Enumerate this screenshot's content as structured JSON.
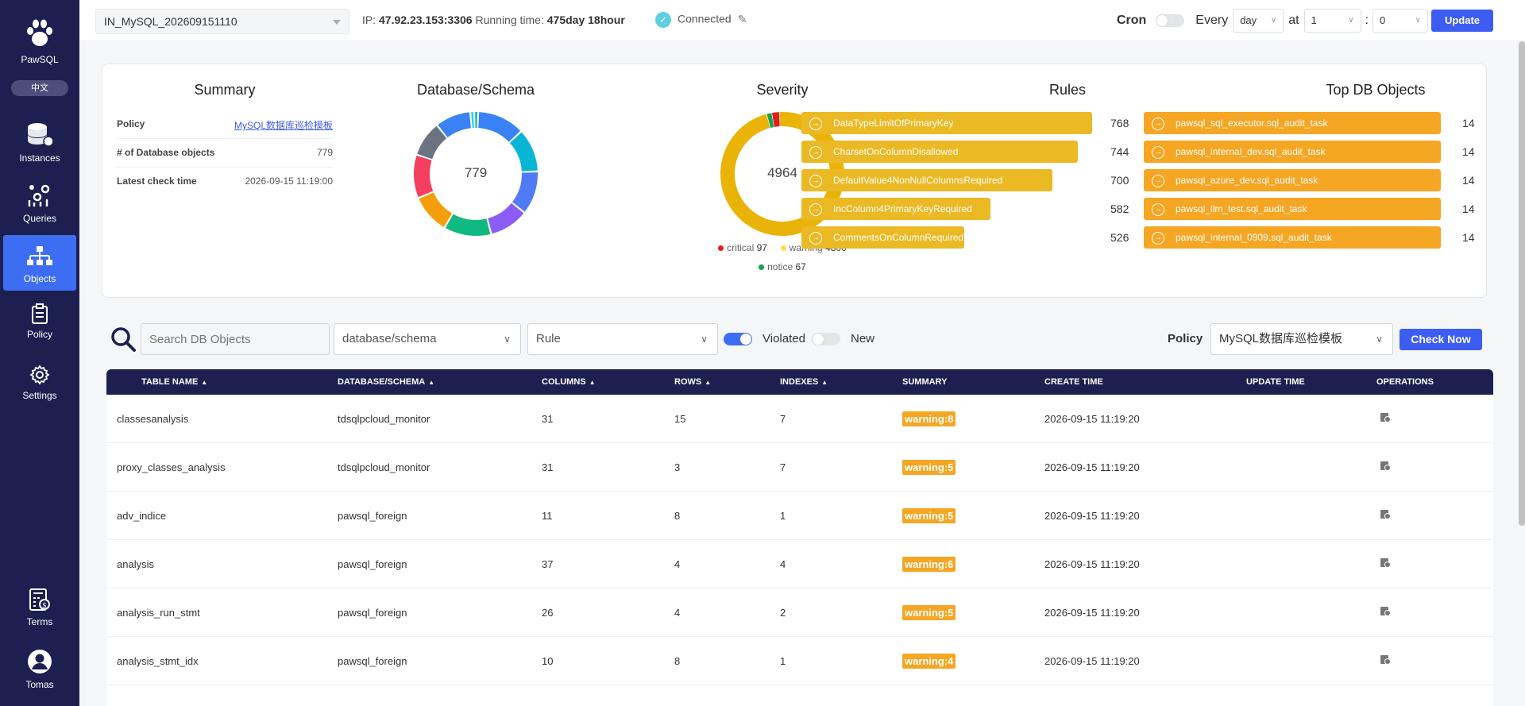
{
  "sidebar": {
    "logo_text": "PawSQL",
    "lang": "中文",
    "items": [
      {
        "label": "Instances"
      },
      {
        "label": "Queries"
      },
      {
        "label": "Objects"
      },
      {
        "label": "Policy"
      },
      {
        "label": "Settings"
      },
      {
        "label": "Terms"
      },
      {
        "label": "Tomas"
      }
    ]
  },
  "topbar": {
    "instance": "IN_MySQL_202609151110",
    "ip_label": "IP:",
    "ip": "47.92.23.153:3306",
    "running_label": "Running time:",
    "running": "475day 18hour",
    "status": "Connected",
    "cron_label": "Cron",
    "every_label": "Every",
    "period": "day",
    "at_label": "at",
    "hour": "1",
    "colon": ":",
    "minute": "0",
    "update_label": "Update"
  },
  "summary": {
    "title": "Summary",
    "rows": [
      {
        "key": "Policy",
        "value": "MySQL数据库巡检模板"
      },
      {
        "key": "# of Database objects",
        "value": "779"
      },
      {
        "key": "Latest check time",
        "value": "2026-09-15 11:19:00"
      }
    ]
  },
  "db_chart": {
    "title": "Database/Schema",
    "total": "779",
    "colors": [
      "#3b82f6",
      "#06b6d4",
      "#4f7cf6",
      "#8b5cf6",
      "#10b981",
      "#f59e0b",
      "#f43f5e",
      "#6b7280",
      "#3b82f6",
      "#22d3ee",
      "#14b8a6"
    ]
  },
  "severity": {
    "title": "Severity",
    "total": "4964",
    "items": [
      {
        "name": "critical",
        "value": 97,
        "color": "#e11d1d"
      },
      {
        "name": "warning",
        "value": 4800,
        "color": "#eab308"
      },
      {
        "name": "notice",
        "value": 67,
        "color": "#16a34a"
      }
    ]
  },
  "rules": {
    "title": "Rules",
    "color": "#ebb924",
    "items": [
      {
        "name": "DataTypeLimitOfPrimaryKey",
        "value": 768
      },
      {
        "name": "CharsetOnColumnDisallowed",
        "value": 744
      },
      {
        "name": "DefaultValue4NonNullColumnsRequired",
        "value": 700
      },
      {
        "name": "IncColumn4PrimaryKeyRequired",
        "value": 582
      },
      {
        "name": "CommentsOnColumnRequired",
        "value": 526
      }
    ]
  },
  "top_objects": {
    "title": "Top DB Objects",
    "color": "#f5a623",
    "items": [
      {
        "name": "pawsql_sql_executor.sql_audit_task",
        "value": 14
      },
      {
        "name": "pawsql_internal_dev.sql_audit_task",
        "value": 14
      },
      {
        "name": "pawsql_azure_dev.sql_audit_task",
        "value": 14
      },
      {
        "name": "pawsql_llm_test.sql_audit_task",
        "value": 14
      },
      {
        "name": "pawsql_internal_0909.sql_audit_task",
        "value": 14
      }
    ]
  },
  "filters": {
    "search_placeholder": "Search DB Objects",
    "schema": "database/schema",
    "rule": "Rule",
    "violated": "Violated",
    "new": "New",
    "policy_label": "Policy",
    "policy": "MySQL数据库巡检模板",
    "check_now": "Check Now"
  },
  "table": {
    "headers": [
      "TABLE NAME",
      "DATABASE/SCHEMA",
      "COLUMNS",
      "ROWS",
      "INDEXES",
      "SUMMARY",
      "CREATE TIME",
      "UPDATE TIME",
      "OPERATIONS"
    ],
    "rows": [
      {
        "name": "classesanalysis",
        "schema": "tdsqlpcloud_monitor",
        "columns": "31",
        "rows": "15",
        "indexes": "7",
        "summary": "warning:8",
        "create": "2026-09-15 11:19:20",
        "update": ""
      },
      {
        "name": "proxy_classes_analysis",
        "schema": "tdsqlpcloud_monitor",
        "columns": "31",
        "rows": "3",
        "indexes": "7",
        "summary": "warning:5",
        "create": "2026-09-15 11:19:20",
        "update": ""
      },
      {
        "name": "adv_indice",
        "schema": "pawsql_foreign",
        "columns": "11",
        "rows": "8",
        "indexes": "1",
        "summary": "warning:5",
        "create": "2026-09-15 11:19:20",
        "update": ""
      },
      {
        "name": "analysis",
        "schema": "pawsql_foreign",
        "columns": "37",
        "rows": "4",
        "indexes": "4",
        "summary": "warning:6",
        "create": "2026-09-15 11:19:20",
        "update": ""
      },
      {
        "name": "analysis_run_stmt",
        "schema": "pawsql_foreign",
        "columns": "26",
        "rows": "4",
        "indexes": "2",
        "summary": "warning:5",
        "create": "2026-09-15 11:19:20",
        "update": ""
      },
      {
        "name": "analysis_stmt_idx",
        "schema": "pawsql_foreign",
        "columns": "10",
        "rows": "8",
        "indexes": "1",
        "summary": "warning:4",
        "create": "2026-09-15 11:19:20",
        "update": ""
      }
    ]
  }
}
